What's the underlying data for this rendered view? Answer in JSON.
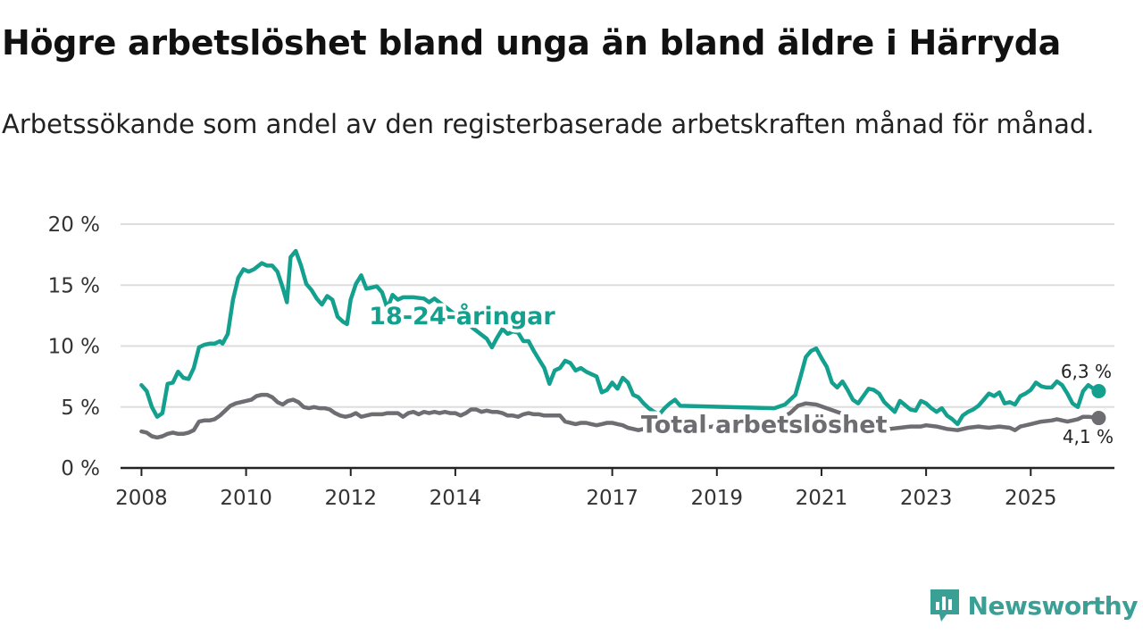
{
  "title": "Högre arbetslöshet bland unga än bland äldre i Härryda",
  "subtitle": "Arbetssökande som andel av den registerbaserade arbetskraften månad för månad.",
  "brand": "Newsworthy",
  "colors": {
    "youth": "#14a08e",
    "total": "#6e6d72",
    "grid": "#dddddd",
    "axis": "#222222",
    "brand": "#3a9f95"
  },
  "chart_data": {
    "type": "line",
    "title": "Högre arbetslöshet bland unga än bland äldre i Härryda",
    "xlabel": "",
    "ylabel": "",
    "xlim": [
      2007.6,
      2026.6
    ],
    "ylim": [
      0,
      20
    ],
    "grid": true,
    "x_ticks": [
      2008,
      2010,
      2012,
      2014,
      2017,
      2019,
      2021,
      2023,
      2025
    ],
    "x_tick_labels": [
      "2008",
      "2010",
      "2012",
      "2014",
      "2017",
      "2019",
      "2021",
      "2023",
      "2025"
    ],
    "y_ticks": [
      0,
      5,
      10,
      15,
      20
    ],
    "y_tick_labels": [
      "0 %",
      "5 %",
      "10 %",
      "15 %",
      "20 %"
    ],
    "series": [
      {
        "name": "18-24-åringar",
        "end_label": "6,3 %",
        "points": [
          [
            2008.0,
            6.8
          ],
          [
            2008.1,
            6.3
          ],
          [
            2008.2,
            5.0
          ],
          [
            2008.3,
            4.2
          ],
          [
            2008.4,
            4.5
          ],
          [
            2008.5,
            6.9
          ],
          [
            2008.6,
            7.0
          ],
          [
            2008.7,
            7.9
          ],
          [
            2008.8,
            7.4
          ],
          [
            2008.9,
            7.3
          ],
          [
            2009.0,
            8.2
          ],
          [
            2009.1,
            9.9
          ],
          [
            2009.2,
            10.1
          ],
          [
            2009.3,
            10.2
          ],
          [
            2009.4,
            10.2
          ],
          [
            2009.5,
            10.4
          ],
          [
            2009.55,
            10.2
          ],
          [
            2009.65,
            11.0
          ],
          [
            2009.75,
            13.8
          ],
          [
            2009.85,
            15.6
          ],
          [
            2009.95,
            16.3
          ],
          [
            2010.05,
            16.1
          ],
          [
            2010.15,
            16.3
          ],
          [
            2010.3,
            16.8
          ],
          [
            2010.4,
            16.6
          ],
          [
            2010.5,
            16.6
          ],
          [
            2010.6,
            16.1
          ],
          [
            2010.7,
            14.8
          ],
          [
            2010.78,
            13.6
          ],
          [
            2010.85,
            17.3
          ],
          [
            2010.95,
            17.8
          ],
          [
            2011.05,
            16.6
          ],
          [
            2011.15,
            15.1
          ],
          [
            2011.25,
            14.6
          ],
          [
            2011.35,
            13.9
          ],
          [
            2011.45,
            13.4
          ],
          [
            2011.55,
            14.1
          ],
          [
            2011.65,
            13.8
          ],
          [
            2011.75,
            12.4
          ],
          [
            2011.85,
            12.0
          ],
          [
            2011.93,
            11.8
          ],
          [
            2012.0,
            13.8
          ],
          [
            2012.1,
            15.1
          ],
          [
            2012.2,
            15.8
          ],
          [
            2012.3,
            14.7
          ],
          [
            2012.4,
            14.8
          ],
          [
            2012.5,
            14.9
          ],
          [
            2012.6,
            14.4
          ],
          [
            2012.7,
            13.1
          ],
          [
            2012.8,
            14.2
          ],
          [
            2012.9,
            13.8
          ],
          [
            2013.0,
            14.0
          ],
          [
            2013.2,
            14.0
          ],
          [
            2013.4,
            13.9
          ],
          [
            2013.5,
            13.6
          ],
          [
            2013.6,
            13.9
          ],
          [
            2014.6,
            10.6
          ],
          [
            2014.7,
            9.9
          ],
          [
            2014.8,
            10.7
          ],
          [
            2014.9,
            11.4
          ],
          [
            2015.0,
            11.0
          ],
          [
            2015.1,
            11.2
          ],
          [
            2015.2,
            11.1
          ],
          [
            2015.3,
            10.4
          ],
          [
            2015.4,
            10.4
          ],
          [
            2015.5,
            9.6
          ],
          [
            2015.6,
            8.9
          ],
          [
            2015.7,
            8.2
          ],
          [
            2015.8,
            6.9
          ],
          [
            2015.9,
            8.0
          ],
          [
            2016.0,
            8.2
          ],
          [
            2016.1,
            8.8
          ],
          [
            2016.2,
            8.6
          ],
          [
            2016.3,
            8.0
          ],
          [
            2016.4,
            8.2
          ],
          [
            2016.5,
            7.9
          ],
          [
            2016.6,
            7.7
          ],
          [
            2016.7,
            7.5
          ],
          [
            2016.8,
            6.2
          ],
          [
            2016.9,
            6.4
          ],
          [
            2017.0,
            7.0
          ],
          [
            2017.1,
            6.5
          ],
          [
            2017.2,
            7.4
          ],
          [
            2017.3,
            7.0
          ],
          [
            2017.4,
            6.0
          ],
          [
            2017.5,
            5.8
          ],
          [
            2017.6,
            5.3
          ],
          [
            2017.7,
            4.9
          ],
          [
            2017.8,
            4.6
          ],
          [
            2017.9,
            4.4
          ],
          [
            2018.0,
            4.9
          ],
          [
            2018.1,
            5.3
          ],
          [
            2018.2,
            5.6
          ],
          [
            2018.3,
            5.1
          ],
          [
            2020.1,
            4.9
          ],
          [
            2020.3,
            5.2
          ],
          [
            2020.5,
            6.0
          ],
          [
            2020.6,
            7.5
          ],
          [
            2020.7,
            9.1
          ],
          [
            2020.8,
            9.6
          ],
          [
            2020.9,
            9.8
          ],
          [
            2021.0,
            9.0
          ],
          [
            2021.1,
            8.3
          ],
          [
            2021.2,
            7.0
          ],
          [
            2021.3,
            6.6
          ],
          [
            2021.4,
            7.1
          ],
          [
            2021.5,
            6.4
          ],
          [
            2021.6,
            5.6
          ],
          [
            2021.7,
            5.3
          ],
          [
            2021.8,
            5.9
          ],
          [
            2021.9,
            6.5
          ],
          [
            2022.0,
            6.4
          ],
          [
            2022.1,
            6.1
          ],
          [
            2022.2,
            5.4
          ],
          [
            2022.3,
            5.0
          ],
          [
            2022.4,
            4.6
          ],
          [
            2022.5,
            5.5
          ],
          [
            2022.7,
            4.8
          ],
          [
            2022.8,
            4.7
          ],
          [
            2022.9,
            5.5
          ],
          [
            2023.0,
            5.3
          ],
          [
            2023.1,
            4.9
          ],
          [
            2023.2,
            4.6
          ],
          [
            2023.3,
            4.9
          ],
          [
            2023.4,
            4.3
          ],
          [
            2023.5,
            4.0
          ],
          [
            2023.6,
            3.6
          ],
          [
            2023.7,
            4.3
          ],
          [
            2023.8,
            4.6
          ],
          [
            2023.9,
            4.8
          ],
          [
            2024.0,
            5.1
          ],
          [
            2024.1,
            5.6
          ],
          [
            2024.2,
            6.1
          ],
          [
            2024.3,
            5.9
          ],
          [
            2024.4,
            6.2
          ],
          [
            2024.5,
            5.3
          ],
          [
            2024.6,
            5.4
          ],
          [
            2024.7,
            5.2
          ],
          [
            2024.8,
            5.9
          ],
          [
            2024.9,
            6.1
          ],
          [
            2025.0,
            6.4
          ],
          [
            2025.1,
            7.0
          ],
          [
            2025.2,
            6.7
          ],
          [
            2025.3,
            6.6
          ],
          [
            2025.4,
            6.6
          ],
          [
            2025.5,
            7.1
          ],
          [
            2025.6,
            6.8
          ],
          [
            2025.7,
            6.1
          ],
          [
            2025.8,
            5.3
          ],
          [
            2025.9,
            5.0
          ],
          [
            2026.0,
            6.3
          ],
          [
            2026.1,
            6.8
          ],
          [
            2026.2,
            6.5
          ],
          [
            2026.3,
            6.3
          ]
        ]
      },
      {
        "name": "Total arbetslöshet",
        "end_label": "4,1 %",
        "points": [
          [
            2008.0,
            3.0
          ],
          [
            2008.1,
            2.9
          ],
          [
            2008.2,
            2.6
          ],
          [
            2008.3,
            2.5
          ],
          [
            2008.4,
            2.6
          ],
          [
            2008.5,
            2.8
          ],
          [
            2008.6,
            2.9
          ],
          [
            2008.7,
            2.8
          ],
          [
            2008.8,
            2.8
          ],
          [
            2008.9,
            2.9
          ],
          [
            2009.0,
            3.1
          ],
          [
            2009.1,
            3.8
          ],
          [
            2009.2,
            3.9
          ],
          [
            2009.3,
            3.9
          ],
          [
            2009.4,
            4.0
          ],
          [
            2009.5,
            4.3
          ],
          [
            2009.6,
            4.7
          ],
          [
            2009.7,
            5.1
          ],
          [
            2009.8,
            5.3
          ],
          [
            2009.9,
            5.4
          ],
          [
            2010.0,
            5.5
          ],
          [
            2010.1,
            5.6
          ],
          [
            2010.2,
            5.9
          ],
          [
            2010.3,
            6.0
          ],
          [
            2010.4,
            6.0
          ],
          [
            2010.5,
            5.8
          ],
          [
            2010.6,
            5.4
          ],
          [
            2010.7,
            5.2
          ],
          [
            2010.8,
            5.5
          ],
          [
            2010.9,
            5.6
          ],
          [
            2011.0,
            5.4
          ],
          [
            2011.1,
            5.0
          ],
          [
            2011.2,
            4.9
          ],
          [
            2011.3,
            5.0
          ],
          [
            2011.4,
            4.9
          ],
          [
            2011.5,
            4.9
          ],
          [
            2011.6,
            4.8
          ],
          [
            2011.7,
            4.5
          ],
          [
            2011.8,
            4.3
          ],
          [
            2011.9,
            4.2
          ],
          [
            2012.0,
            4.3
          ],
          [
            2012.1,
            4.5
          ],
          [
            2012.2,
            4.2
          ],
          [
            2012.3,
            4.3
          ],
          [
            2012.4,
            4.4
          ],
          [
            2012.6,
            4.4
          ],
          [
            2012.7,
            4.5
          ],
          [
            2012.9,
            4.5
          ],
          [
            2013.0,
            4.2
          ],
          [
            2013.1,
            4.5
          ],
          [
            2013.2,
            4.6
          ],
          [
            2013.3,
            4.4
          ],
          [
            2013.4,
            4.6
          ],
          [
            2013.5,
            4.5
          ],
          [
            2013.6,
            4.6
          ],
          [
            2013.7,
            4.5
          ],
          [
            2013.8,
            4.6
          ],
          [
            2013.9,
            4.5
          ],
          [
            2014.0,
            4.5
          ],
          [
            2014.1,
            4.3
          ],
          [
            2014.2,
            4.5
          ],
          [
            2014.3,
            4.8
          ],
          [
            2014.4,
            4.8
          ],
          [
            2014.5,
            4.6
          ],
          [
            2014.6,
            4.7
          ],
          [
            2014.7,
            4.6
          ],
          [
            2014.8,
            4.6
          ],
          [
            2014.9,
            4.5
          ],
          [
            2015.0,
            4.3
          ],
          [
            2015.1,
            4.3
          ],
          [
            2015.2,
            4.2
          ],
          [
            2015.3,
            4.4
          ],
          [
            2015.4,
            4.5
          ],
          [
            2015.5,
            4.4
          ],
          [
            2015.6,
            4.4
          ],
          [
            2015.7,
            4.3
          ],
          [
            2015.8,
            4.3
          ],
          [
            2016.0,
            4.3
          ],
          [
            2016.1,
            3.8
          ],
          [
            2016.2,
            3.7
          ],
          [
            2016.3,
            3.6
          ],
          [
            2016.4,
            3.7
          ],
          [
            2016.5,
            3.7
          ],
          [
            2016.6,
            3.6
          ],
          [
            2016.7,
            3.5
          ],
          [
            2016.8,
            3.6
          ],
          [
            2016.9,
            3.7
          ],
          [
            2017.0,
            3.7
          ],
          [
            2017.1,
            3.6
          ],
          [
            2017.2,
            3.5
          ],
          [
            2017.3,
            3.3
          ],
          [
            2017.4,
            3.2
          ],
          [
            2017.5,
            3.1
          ],
          [
            2017.6,
            3.2
          ],
          [
            2017.7,
            3.3
          ],
          [
            2017.8,
            3.4
          ],
          [
            2017.9,
            3.4
          ],
          [
            2018.0,
            3.4
          ],
          [
            2018.1,
            3.2
          ],
          [
            2018.2,
            3.1
          ],
          [
            2018.3,
            3.1
          ],
          [
            2020.2,
            4.0
          ],
          [
            2020.4,
            4.5
          ],
          [
            2020.55,
            5.1
          ],
          [
            2020.7,
            5.3
          ],
          [
            2020.9,
            5.2
          ],
          [
            2021.1,
            4.9
          ],
          [
            2021.3,
            4.6
          ],
          [
            2021.5,
            4.3
          ],
          [
            2021.7,
            3.9
          ],
          [
            2021.9,
            3.6
          ],
          [
            2022.1,
            3.3
          ],
          [
            2022.3,
            3.2
          ],
          [
            2022.5,
            3.3
          ],
          [
            2022.7,
            3.4
          ],
          [
            2022.9,
            3.4
          ],
          [
            2023.0,
            3.5
          ],
          [
            2023.2,
            3.4
          ],
          [
            2023.4,
            3.2
          ],
          [
            2023.6,
            3.1
          ],
          [
            2023.8,
            3.3
          ],
          [
            2024.0,
            3.4
          ],
          [
            2024.2,
            3.3
          ],
          [
            2024.4,
            3.4
          ],
          [
            2024.6,
            3.3
          ],
          [
            2024.7,
            3.1
          ],
          [
            2024.8,
            3.4
          ],
          [
            2025.0,
            3.6
          ],
          [
            2025.2,
            3.8
          ],
          [
            2025.4,
            3.9
          ],
          [
            2025.5,
            4.0
          ],
          [
            2025.7,
            3.8
          ],
          [
            2025.8,
            3.9
          ],
          [
            2025.9,
            4.0
          ],
          [
            2026.0,
            4.2
          ],
          [
            2026.1,
            4.2
          ],
          [
            2026.3,
            4.1
          ]
        ]
      }
    ]
  }
}
